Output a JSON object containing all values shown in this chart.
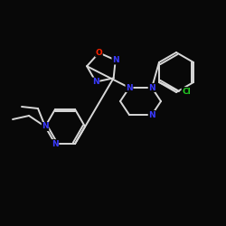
{
  "bg_color": "#080808",
  "bond_color": "#d8d8d8",
  "bond_width": 1.4,
  "atom_colors": {
    "N": "#3a3aff",
    "O": "#ff2200",
    "Cl": "#22cc22",
    "C": "#d8d8d8"
  },
  "font_size_atoms": 6.5
}
